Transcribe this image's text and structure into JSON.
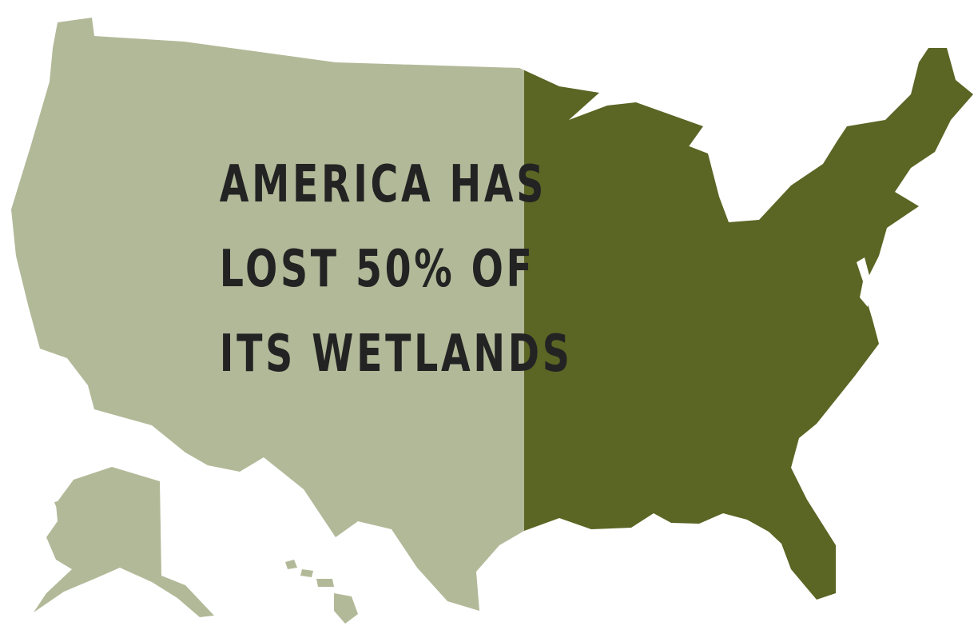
{
  "headline": {
    "lines": [
      "AMERICA HAS",
      "LOST 50% OF",
      "ITS WETLANDS"
    ]
  },
  "wetlands": {
    "lost_percent": 50,
    "lost_color": "#b2b998",
    "remaining_color": "#5b6524"
  }
}
